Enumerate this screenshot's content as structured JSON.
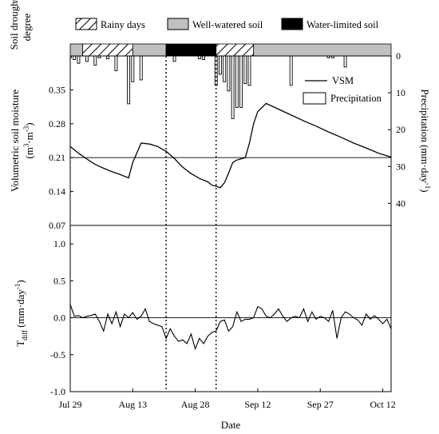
{
  "chart_data": [
    {
      "type": "line",
      "panel": "top",
      "x_axis": {
        "type": "date",
        "start": "Jul 29",
        "end": "Oct 14",
        "ticks": [
          "Jul 29",
          "Aug 13",
          "Aug 28",
          "Sep 12",
          "Sep 27",
          "Oct 12"
        ]
      },
      "ylabel": "Volumetric soil moisture (m³·m⁻³)",
      "ylabel_main": "Volumetric soil moisture",
      "ylabel_unit": "(m³·m⁻³)",
      "ylim": [
        0.07,
        0.42
      ],
      "yticks": [
        "0.07",
        "0.14",
        "0.21",
        "0.28",
        "0.35"
      ],
      "y2label": "Precipitation (mm·day⁻¹)",
      "y2label_main": "Precipitation",
      "y2label_unit": "(mm·day⁻¹)",
      "y2lim": [
        0,
        46
      ],
      "y2_inverted": true,
      "y2ticks": [
        "0",
        "10",
        "20",
        "30",
        "40"
      ],
      "reference_line_y": 0.21,
      "legend": [
        "VSM",
        "Precipitation"
      ],
      "legend_position": "top-right",
      "series": [
        {
          "name": "VSM",
          "kind": "line",
          "axis": "left",
          "x": [
            "Jul 29",
            "Jul 31",
            "Aug 2",
            "Aug 4",
            "Aug 6",
            "Aug 8",
            "Aug 10",
            "Aug 12",
            "Aug 13",
            "Aug 15",
            "Aug 17",
            "Aug 19",
            "Aug 21",
            "Aug 23",
            "Aug 25",
            "Aug 27",
            "Aug 29",
            "Aug 31",
            "Sep 1",
            "Sep 2",
            "Sep 3",
            "Sep 4",
            "Sep 5",
            "Sep 6",
            "Sep 7",
            "Sep 9",
            "Sep 10",
            "Sep 11",
            "Sep 12",
            "Sep 14",
            "Sep 17",
            "Sep 20",
            "Sep 23",
            "Sep 26",
            "Sep 29",
            "Oct 2",
            "Oct 5",
            "Oct 8",
            "Oct 11",
            "Oct 14"
          ],
          "values": [
            0.233,
            0.219,
            0.207,
            0.196,
            0.188,
            0.181,
            0.175,
            0.168,
            0.2,
            0.24,
            0.238,
            0.233,
            0.223,
            0.208,
            0.19,
            0.177,
            0.167,
            0.16,
            0.153,
            0.151,
            0.148,
            0.158,
            0.178,
            0.2,
            0.205,
            0.21,
            0.24,
            0.28,
            0.305,
            0.322,
            0.31,
            0.298,
            0.286,
            0.275,
            0.263,
            0.252,
            0.24,
            0.23,
            0.219,
            0.211
          ]
        },
        {
          "name": "Precipitation",
          "kind": "bar",
          "axis": "right",
          "x": [
            "Jul 29",
            "Jul 30",
            "Jul 31",
            "Aug 2",
            "Aug 4",
            "Aug 5",
            "Aug 7",
            "Aug 9",
            "Aug 12",
            "Aug 13",
            "Aug 15",
            "Aug 23",
            "Aug 29",
            "Aug 30",
            "Sep 2",
            "Sep 3",
            "Sep 4",
            "Sep 5",
            "Sep 6",
            "Sep 7",
            "Sep 8",
            "Sep 9",
            "Sep 10",
            "Sep 20",
            "Sep 29",
            "Sep 30",
            "Oct 3"
          ],
          "values": [
            0.5,
            1.0,
            2.0,
            1.5,
            2.5,
            0.5,
            0.8,
            4.0,
            13.0,
            7.0,
            6.5,
            1.5,
            0.8,
            1.0,
            8.0,
            5.0,
            7.0,
            9.5,
            17.0,
            14.0,
            14.0,
            7.5,
            8.0,
            8.0,
            0.5,
            0.5,
            3.0
          ]
        }
      ]
    },
    {
      "type": "line",
      "panel": "bottom",
      "xlabel": "Date",
      "ylabel": "T_diff (mm·day⁻¹)",
      "ylabel_sym": "T",
      "ylabel_sub": "diff",
      "ylabel_unit": "(mm·day⁻¹)",
      "ylim": [
        -1.0,
        1.25
      ],
      "yticks": [
        "-1.0",
        "-0.5",
        "0.0",
        "0.5",
        "1.0"
      ],
      "reference_line_y": 0,
      "x_axis": {
        "type": "date",
        "start": "Jul 29",
        "end": "Oct 14",
        "ticks": [
          "Jul 29",
          "Aug 13",
          "Aug 28",
          "Sep 12",
          "Sep 27",
          "Oct 12"
        ]
      },
      "series": [
        {
          "name": "",
          "x": [
            "Jul 29",
            "Jul 30",
            "Jul 31",
            "Aug 1",
            "Aug 2",
            "Aug 3",
            "Aug 4",
            "Aug 5",
            "Aug 6",
            "Aug 7",
            "Aug 8",
            "Aug 9",
            "Aug 10",
            "Aug 11",
            "Aug 12",
            "Aug 13",
            "Aug 14",
            "Aug 15",
            "Aug 16",
            "Aug 17",
            "Aug 18",
            "Aug 19",
            "Aug 20",
            "Aug 21",
            "Aug 22",
            "Aug 23",
            "Aug 24",
            "Aug 25",
            "Aug 26",
            "Aug 27",
            "Aug 28",
            "Aug 29",
            "Aug 30",
            "Aug 31",
            "Sep 1",
            "Sep 2",
            "Sep 3",
            "Sep 4",
            "Sep 5",
            "Sep 6",
            "Sep 7",
            "Sep 8",
            "Sep 9",
            "Sep 10",
            "Sep 11",
            "Sep 12",
            "Sep 13",
            "Sep 14",
            "Sep 15",
            "Sep 16",
            "Sep 17",
            "Sep 18",
            "Sep 19",
            "Sep 20",
            "Sep 21",
            "Sep 22",
            "Sep 23",
            "Sep 24",
            "Sep 25",
            "Sep 26",
            "Sep 27",
            "Sep 28",
            "Sep 29",
            "Sep 30",
            "Oct 1",
            "Oct 2",
            "Oct 3",
            "Oct 4",
            "Oct 5",
            "Oct 6",
            "Oct 7",
            "Oct 8",
            "Oct 9",
            "Oct 10",
            "Oct 11",
            "Oct 12",
            "Oct 13",
            "Oct 14"
          ],
          "values": [
            0.18,
            0.02,
            0.03,
            0.0,
            0.02,
            0.03,
            0.05,
            -0.05,
            -0.18,
            0.05,
            -0.08,
            0.08,
            -0.12,
            0.05,
            0.0,
            0.07,
            -0.02,
            0.02,
            0.12,
            -0.05,
            -0.08,
            -0.1,
            -0.12,
            -0.28,
            -0.15,
            -0.25,
            -0.32,
            -0.3,
            -0.35,
            -0.22,
            -0.42,
            -0.28,
            -0.35,
            -0.25,
            -0.2,
            -0.18,
            -0.05,
            -0.03,
            -0.18,
            -0.12,
            0.08,
            -0.05,
            -0.02,
            -0.02,
            0.0,
            0.15,
            0.12,
            0.02,
            0.0,
            0.05,
            0.12,
            0.02,
            -0.05,
            0.0,
            0.02,
            0.0,
            0.12,
            -0.05,
            0.08,
            -0.02,
            0.02,
            0.0,
            -0.05,
            0.1,
            -0.28,
            0.0,
            0.08,
            0.05,
            0.0,
            -0.03,
            -0.1,
            0.05,
            -0.02,
            0.03,
            -0.02,
            -0.08,
            -0.02,
            -0.15
          ]
        }
      ]
    }
  ],
  "soil_degree": {
    "ylabel_line1": "Soil drought",
    "ylabel_line2": "degree",
    "legend": [
      {
        "label": "Rainy days",
        "fill": "hatch"
      },
      {
        "label": "Well-watered soil",
        "fill": "#c0c0c0"
      },
      {
        "label": "Water-limited soil",
        "fill": "#000000"
      }
    ],
    "segments": [
      {
        "state": "Well-watered soil",
        "start": "Jul 29",
        "end": "Aug 1"
      },
      {
        "state": "Rainy days",
        "start": "Aug 1",
        "end": "Aug 13"
      },
      {
        "state": "Well-watered soil",
        "start": "Aug 13",
        "end": "Aug 21"
      },
      {
        "state": "Water-limited soil",
        "start": "Aug 21",
        "end": "Sep 2"
      },
      {
        "state": "Rainy days",
        "start": "Sep 2",
        "end": "Sep 11"
      },
      {
        "state": "Well-watered soil",
        "start": "Sep 11",
        "end": "Oct 14"
      }
    ]
  },
  "event_lines": [
    "Aug 21",
    "Sep 2"
  ],
  "colors": {
    "line": "#000000",
    "well_watered": "#c0c0c0",
    "water_limited": "#000000",
    "background": "#ffffff"
  }
}
